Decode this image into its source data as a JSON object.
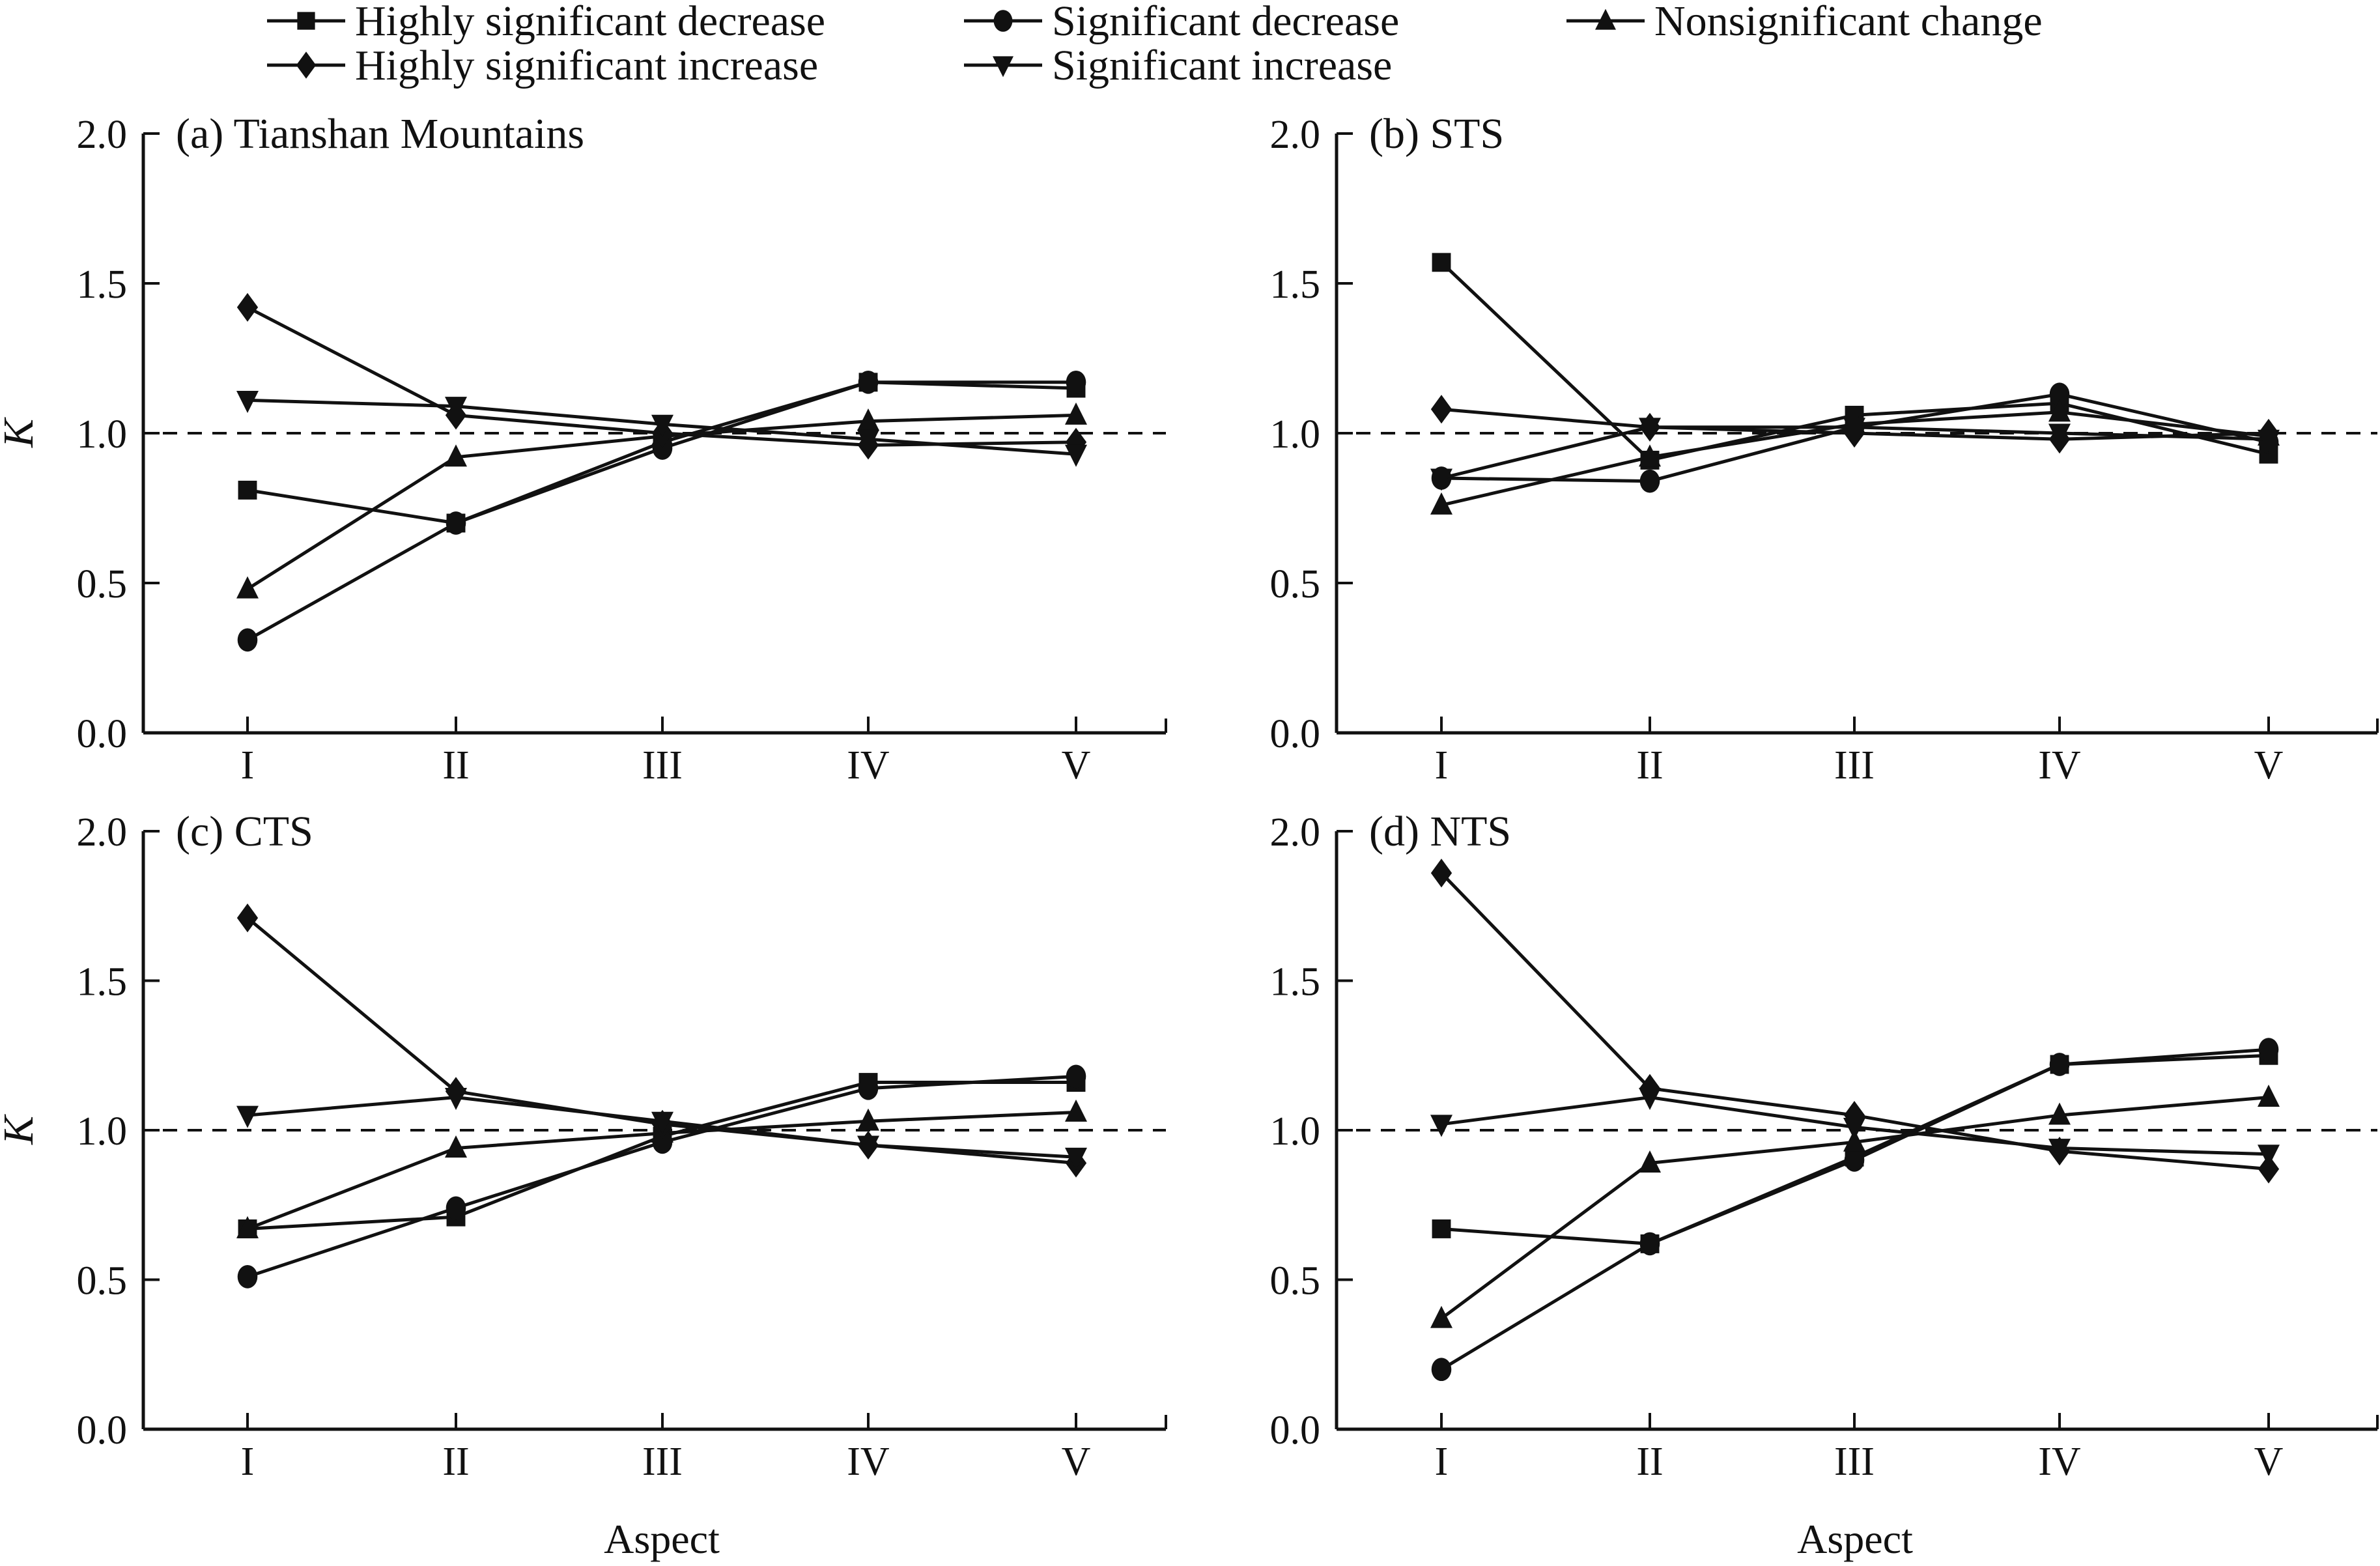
{
  "legend": {
    "items": [
      {
        "label": "Highly significant decrease",
        "marker": "square"
      },
      {
        "label": "Significant decrease",
        "marker": "circle"
      },
      {
        "label": "Nonsignificant change",
        "marker": "triangle-up"
      },
      {
        "label": "Highly significant increase",
        "marker": "diamond"
      },
      {
        "label": "Significant increase",
        "marker": "triangle-down"
      }
    ]
  },
  "chart_data": [
    {
      "type": "line",
      "title": "(a) Tianshan Mountains",
      "xlabel": "",
      "ylabel": "K",
      "categories": [
        "I",
        "II",
        "III",
        "IV",
        "V"
      ],
      "yticks": [
        "0.0",
        "0.5",
        "1.0",
        "1.5",
        "2.0"
      ],
      "ylim": [
        0,
        2
      ],
      "reference_line": 1.0,
      "series": [
        {
          "name": "Highly significant decrease",
          "marker": "square",
          "values": [
            0.81,
            0.7,
            0.97,
            1.17,
            1.15
          ]
        },
        {
          "name": "Significant decrease",
          "marker": "circle",
          "values": [
            0.31,
            0.7,
            0.95,
            1.17,
            1.17
          ]
        },
        {
          "name": "Nonsignificant change",
          "marker": "triangle-up",
          "values": [
            0.48,
            0.92,
            0.99,
            1.04,
            1.06
          ]
        },
        {
          "name": "Highly significant increase",
          "marker": "diamond",
          "values": [
            1.42,
            1.06,
            1.0,
            0.96,
            0.97
          ]
        },
        {
          "name": "Significant increase",
          "marker": "triangle-down",
          "values": [
            1.11,
            1.09,
            1.03,
            0.98,
            0.93
          ]
        }
      ]
    },
    {
      "type": "line",
      "title": "(b) STS",
      "xlabel": "",
      "ylabel": "",
      "categories": [
        "I",
        "II",
        "III",
        "IV",
        "V"
      ],
      "yticks": [
        "0.0",
        "0.5",
        "1.0",
        "1.5",
        "2.0"
      ],
      "ylim": [
        0,
        2
      ],
      "reference_line": 1.0,
      "series": [
        {
          "name": "Highly significant decrease",
          "marker": "square",
          "values": [
            1.57,
            0.91,
            1.06,
            1.1,
            0.93
          ]
        },
        {
          "name": "Significant decrease",
          "marker": "circle",
          "values": [
            0.85,
            0.84,
            1.02,
            1.13,
            0.97
          ]
        },
        {
          "name": "Nonsignificant change",
          "marker": "triangle-up",
          "values": [
            0.76,
            0.92,
            1.03,
            1.07,
            0.99
          ]
        },
        {
          "name": "Highly significant increase",
          "marker": "diamond",
          "values": [
            1.08,
            1.02,
            1.0,
            0.98,
            1.0
          ]
        },
        {
          "name": "Significant increase",
          "marker": "triangle-down",
          "values": [
            0.85,
            1.02,
            1.02,
            1.0,
            0.98
          ]
        }
      ]
    },
    {
      "type": "line",
      "title": "(c) CTS",
      "xlabel": "Aspect",
      "ylabel": "K",
      "categories": [
        "I",
        "II",
        "III",
        "IV",
        "V"
      ],
      "yticks": [
        "0.0",
        "0.5",
        "1.0",
        "1.5",
        "2.0"
      ],
      "ylim": [
        0,
        2
      ],
      "reference_line": 1.0,
      "series": [
        {
          "name": "Highly significant decrease",
          "marker": "square",
          "values": [
            0.67,
            0.71,
            0.98,
            1.16,
            1.16
          ]
        },
        {
          "name": "Significant decrease",
          "marker": "circle",
          "values": [
            0.51,
            0.74,
            0.96,
            1.14,
            1.18
          ]
        },
        {
          "name": "Nonsignificant change",
          "marker": "triangle-up",
          "values": [
            0.67,
            0.94,
            0.99,
            1.03,
            1.06
          ]
        },
        {
          "name": "Highly significant increase",
          "marker": "diamond",
          "values": [
            1.71,
            1.13,
            1.02,
            0.95,
            0.89
          ]
        },
        {
          "name": "Significant increase",
          "marker": "triangle-down",
          "values": [
            1.05,
            1.11,
            1.03,
            0.95,
            0.91
          ]
        }
      ]
    },
    {
      "type": "line",
      "title": "(d) NTS",
      "xlabel": "Aspect",
      "ylabel": "",
      "categories": [
        "I",
        "II",
        "III",
        "IV",
        "V"
      ],
      "yticks": [
        "0.0",
        "0.5",
        "1.0",
        "1.5",
        "2.0"
      ],
      "ylim": [
        0,
        2
      ],
      "reference_line": 1.0,
      "series": [
        {
          "name": "Highly significant decrease",
          "marker": "square",
          "values": [
            0.67,
            0.62,
            0.91,
            1.22,
            1.25
          ]
        },
        {
          "name": "Significant decrease",
          "marker": "circle",
          "values": [
            0.2,
            0.62,
            0.9,
            1.22,
            1.27
          ]
        },
        {
          "name": "Nonsignificant change",
          "marker": "triangle-up",
          "values": [
            0.37,
            0.89,
            0.96,
            1.05,
            1.11
          ]
        },
        {
          "name": "Highly significant increase",
          "marker": "diamond",
          "values": [
            1.86,
            1.14,
            1.05,
            0.93,
            0.87
          ]
        },
        {
          "name": "Significant increase",
          "marker": "triangle-down",
          "values": [
            1.02,
            1.11,
            1.01,
            0.94,
            0.92
          ]
        }
      ]
    }
  ]
}
